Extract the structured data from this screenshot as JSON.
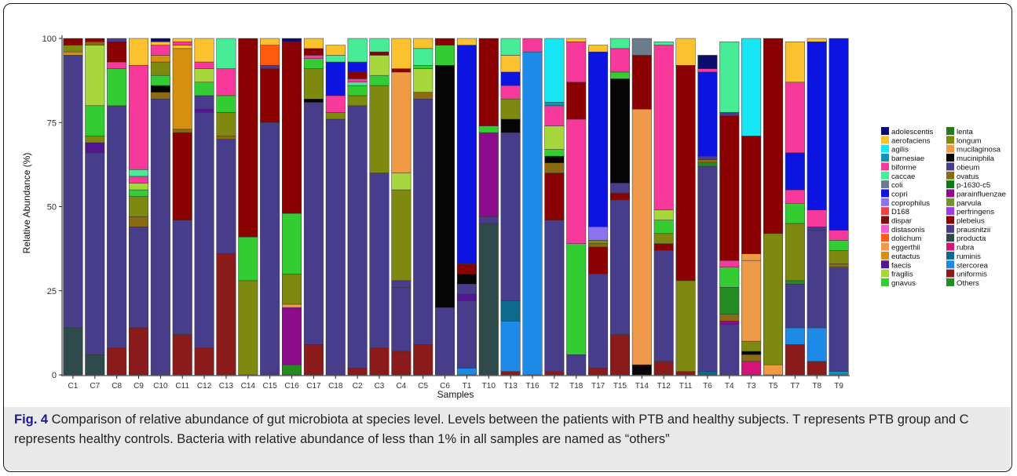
{
  "figure": {
    "caption_label": "Fig. 4",
    "caption_text": " Comparison of relative abundance of gut microbiota at species level. Levels between the patients with PTB and healthy subjects. T represents PTB group and C represents healthy controls. Bacteria with relative abundance of less than 1% in all samples are named as “others”"
  },
  "chart_data": {
    "type": "bar",
    "stacked": true,
    "xlabel": "Samples",
    "ylabel": "Relative Abundance (%)",
    "ylim": [
      0,
      100
    ],
    "yticks": [
      0,
      25,
      50,
      75,
      100
    ],
    "grid": false,
    "legend_position": "right",
    "categories": [
      "C1",
      "C7",
      "C8",
      "C9",
      "C10",
      "C11",
      "C12",
      "C13",
      "C14",
      "C15",
      "C16",
      "C17",
      "C18",
      "C2",
      "C3",
      "C4",
      "C5",
      "C6",
      "T1",
      "T10",
      "T13",
      "T16",
      "T2",
      "T18",
      "T17",
      "T15",
      "T14",
      "T12",
      "T11",
      "T6",
      "T4",
      "T3",
      "T5",
      "T7",
      "T8",
      "T9"
    ],
    "series": [
      {
        "name": "adolescentis",
        "color": "#0d0d6e"
      },
      {
        "name": "aerofaciens",
        "color": "#fcc12e"
      },
      {
        "name": "agilis",
        "color": "#17e6f5"
      },
      {
        "name": "barnesiae",
        "color": "#1392b8"
      },
      {
        "name": "biforme",
        "color": "#f7399b"
      },
      {
        "name": "caccae",
        "color": "#46ec96"
      },
      {
        "name": "coli",
        "color": "#6b7c8d"
      },
      {
        "name": "copri",
        "color": "#0b14e0"
      },
      {
        "name": "coprophilus",
        "color": "#8c72f0"
      },
      {
        "name": "D168",
        "color": "#f0414b"
      },
      {
        "name": "dispar",
        "color": "#7a1010"
      },
      {
        "name": "distasonis",
        "color": "#f25ad0"
      },
      {
        "name": "dolichum",
        "color": "#ff5a0f"
      },
      {
        "name": "eggerthii",
        "color": "#ee9a4a"
      },
      {
        "name": "eutactus",
        "color": "#d6900f"
      },
      {
        "name": "faecis",
        "color": "#541590"
      },
      {
        "name": "fragilis",
        "color": "#a6d83e"
      },
      {
        "name": "gnavus",
        "color": "#33cc33"
      },
      {
        "name": "lenta",
        "color": "#237a23"
      },
      {
        "name": "longum",
        "color": "#7e8a0f"
      },
      {
        "name": "mucilaginosa",
        "color": "#f19a44"
      },
      {
        "name": "muciniphila",
        "color": "#050505"
      },
      {
        "name": "obeum",
        "color": "#4a3c8c"
      },
      {
        "name": "ovatus",
        "color": "#8a6a12"
      },
      {
        "name": "p-1630-c5",
        "color": "#0d7a12"
      },
      {
        "name": "parainfluenzae",
        "color": "#8c0c8c"
      },
      {
        "name": "parvula",
        "color": "#72922b"
      },
      {
        "name": "perfringens",
        "color": "#9d39e6"
      },
      {
        "name": "plebeius",
        "color": "#8b0000"
      },
      {
        "name": "prausnitzii",
        "color": "#483d8b"
      },
      {
        "name": "producta",
        "color": "#2e4a4a"
      },
      {
        "name": "rubra",
        "color": "#d4147a"
      },
      {
        "name": "ruminis",
        "color": "#0e6a8c"
      },
      {
        "name": "stercorea",
        "color": "#1e8ae8"
      },
      {
        "name": "uniformis",
        "color": "#8b1a1a"
      },
      {
        "name": "Others",
        "color": "#228b22"
      }
    ],
    "stacks": [
      [
        [
          "producta",
          14
        ],
        [
          "prausnitzii",
          81
        ],
        [
          "eutactus",
          1
        ],
        [
          "longum",
          2
        ],
        [
          "plebeius",
          2
        ]
      ],
      [
        [
          "producta",
          6
        ],
        [
          "prausnitzii",
          60
        ],
        [
          "faecis",
          3
        ],
        [
          "longum",
          2
        ],
        [
          "gnavus",
          9
        ],
        [
          "fragilis",
          18
        ],
        [
          "ovatus",
          1
        ],
        [
          "plebeius",
          1
        ]
      ],
      [
        [
          "uniformis",
          8
        ],
        [
          "prausnitzii",
          72
        ],
        [
          "gnavus",
          11
        ],
        [
          "biforme",
          2
        ],
        [
          "plebeius",
          6
        ],
        [
          "obeum",
          1
        ]
      ],
      [
        [
          "uniformis",
          14
        ],
        [
          "prausnitzii",
          30
        ],
        [
          "ovatus",
          3
        ],
        [
          "longum",
          6
        ],
        [
          "gnavus",
          2
        ],
        [
          "fragilis",
          2
        ],
        [
          "biforme",
          2
        ],
        [
          "caccae",
          2
        ],
        [
          "biforme",
          31
        ],
        [
          "aerofaciens",
          8
        ]
      ],
      [
        [
          "prausnitzii",
          82
        ],
        [
          "ovatus",
          2
        ],
        [
          "muciniphila",
          2
        ],
        [
          "gnavus",
          3
        ],
        [
          "longum",
          4
        ],
        [
          "eutactus",
          2
        ],
        [
          "biforme",
          3
        ],
        [
          "aerofaciens",
          1
        ],
        [
          "adolescentis",
          1
        ]
      ],
      [
        [
          "uniformis",
          12
        ],
        [
          "prausnitzii",
          34
        ],
        [
          "plebeius",
          26
        ],
        [
          "ovatus",
          1
        ],
        [
          "eutactus",
          24
        ],
        [
          "aerofaciens",
          1
        ],
        [
          "biforme",
          1
        ],
        [
          "aerofaciens",
          1
        ]
      ],
      [
        [
          "uniformis",
          8
        ],
        [
          "prausnitzii",
          70
        ],
        [
          "faecis",
          1
        ],
        [
          "obeum",
          4
        ],
        [
          "gnavus",
          4
        ],
        [
          "fragilis",
          4
        ],
        [
          "biforme",
          2
        ],
        [
          "aerofaciens",
          7
        ]
      ],
      [
        [
          "uniformis",
          36
        ],
        [
          "prausnitzii",
          34
        ],
        [
          "ovatus",
          1
        ],
        [
          "longum",
          7
        ],
        [
          "gnavus",
          5
        ],
        [
          "biforme",
          8
        ],
        [
          "caccae",
          9
        ]
      ],
      [
        [
          "longum",
          28
        ],
        [
          "gnavus",
          13
        ],
        [
          "plebeius",
          59
        ]
      ],
      [
        [
          "prausnitzii",
          75
        ],
        [
          "plebeius",
          16
        ],
        [
          "obeum",
          1
        ],
        [
          "dolichum",
          6
        ],
        [
          "aerofaciens",
          2
        ]
      ],
      [
        [
          "Others",
          3
        ],
        [
          "parainfluenzae",
          17
        ],
        [
          "mucilaginosa",
          1
        ],
        [
          "longum",
          9
        ],
        [
          "gnavus",
          18
        ],
        [
          "plebeius",
          51
        ],
        [
          "adolescentis",
          1
        ]
      ],
      [
        [
          "uniformis",
          9
        ],
        [
          "prausnitzii",
          72
        ],
        [
          "muciniphila",
          1
        ],
        [
          "longum",
          9
        ],
        [
          "gnavus",
          3
        ],
        [
          "biforme",
          1
        ],
        [
          "plebeius",
          2
        ],
        [
          "aerofaciens",
          3
        ]
      ],
      [
        [
          "prausnitzii",
          76
        ],
        [
          "longum",
          2
        ],
        [
          "biforme",
          5
        ],
        [
          "copri",
          10
        ],
        [
          "caccae",
          2
        ],
        [
          "aerofaciens",
          3
        ]
      ],
      [
        [
          "uniformis",
          2
        ],
        [
          "prausnitzii",
          78
        ],
        [
          "longum",
          3
        ],
        [
          "gnavus",
          3
        ],
        [
          "caccae",
          1
        ],
        [
          "biforme",
          1
        ],
        [
          "plebeius",
          2
        ],
        [
          "copri",
          3
        ],
        [
          "caccae",
          7
        ]
      ],
      [
        [
          "uniformis",
          8
        ],
        [
          "prausnitzii",
          52
        ],
        [
          "longum",
          26
        ],
        [
          "gnavus",
          3
        ],
        [
          "fragilis",
          6
        ],
        [
          "plebeius",
          1
        ],
        [
          "caccae",
          4
        ]
      ],
      [
        [
          "uniformis",
          7
        ],
        [
          "prausnitzii",
          19
        ],
        [
          "obeum",
          2
        ],
        [
          "longum",
          27
        ],
        [
          "fragilis",
          5
        ],
        [
          "mucilaginosa",
          30
        ],
        [
          "plebeius",
          1
        ],
        [
          "aerofaciens",
          9
        ]
      ],
      [
        [
          "uniformis",
          9
        ],
        [
          "prausnitzii",
          73
        ],
        [
          "ovatus",
          2
        ],
        [
          "fragilis",
          7
        ],
        [
          "gnavus",
          1
        ],
        [
          "caccae",
          5
        ],
        [
          "aerofaciens",
          3
        ]
      ],
      [
        [
          "prausnitzii",
          20
        ],
        [
          "muciniphila",
          72
        ],
        [
          "gnavus",
          6
        ],
        [
          "plebeius",
          2
        ]
      ],
      [
        [
          "stercorea",
          2
        ],
        [
          "prausnitzii",
          20
        ],
        [
          "faecis",
          2
        ],
        [
          "obeum",
          3
        ],
        [
          "muciniphila",
          3
        ],
        [
          "plebeius",
          3
        ],
        [
          "copri",
          65
        ],
        [
          "aerofaciens",
          2
        ]
      ],
      [
        [
          "producta",
          45
        ],
        [
          "obeum",
          2
        ],
        [
          "parainfluenzae",
          25
        ],
        [
          "gnavus",
          2
        ],
        [
          "plebeius",
          26
        ]
      ],
      [
        [
          "uniformis",
          1
        ],
        [
          "stercorea",
          15
        ],
        [
          "ruminis",
          6
        ],
        [
          "prausnitzii",
          50
        ],
        [
          "muciniphila",
          4
        ],
        [
          "longum",
          6
        ],
        [
          "biforme",
          4
        ],
        [
          "copri",
          4
        ],
        [
          "aerofaciens",
          5
        ],
        [
          "caccae",
          5
        ]
      ],
      [
        [
          "stercorea",
          96
        ],
        [
          "biforme",
          4
        ]
      ],
      [
        [
          "uniformis",
          1
        ],
        [
          "prausnitzii",
          45
        ],
        [
          "plebeius",
          14
        ],
        [
          "ovatus",
          3
        ],
        [
          "muciniphila",
          2
        ],
        [
          "gnavus",
          2
        ],
        [
          "fragilis",
          7
        ],
        [
          "biforme",
          6
        ],
        [
          "barnesiae",
          1
        ],
        [
          "agilis",
          19
        ]
      ],
      [
        [
          "prausnitzii",
          6
        ],
        [
          "gnavus",
          33
        ],
        [
          "biforme",
          37
        ],
        [
          "plebeius",
          11
        ],
        [
          "biforme",
          12
        ],
        [
          "aerofaciens",
          1
        ]
      ],
      [
        [
          "uniformis",
          2
        ],
        [
          "prausnitzii",
          28
        ],
        [
          "plebeius",
          8
        ],
        [
          "ovatus",
          1
        ],
        [
          "longum",
          1
        ],
        [
          "coprophilus",
          4
        ],
        [
          "copri",
          52
        ],
        [
          "aerofaciens",
          2
        ]
      ],
      [
        [
          "uniformis",
          12
        ],
        [
          "prausnitzii",
          40
        ],
        [
          "plebeius",
          2
        ],
        [
          "obeum",
          3
        ],
        [
          "muciniphila",
          31
        ],
        [
          "gnavus",
          2
        ],
        [
          "biforme",
          7
        ],
        [
          "caccae",
          3
        ]
      ],
      [
        [
          "muciniphila",
          3
        ],
        [
          "eggerthii",
          76
        ],
        [
          "plebeius",
          16
        ],
        [
          "coli",
          5
        ]
      ],
      [
        [
          "uniformis",
          4
        ],
        [
          "prausnitzii",
          33
        ],
        [
          "plebeius",
          2
        ],
        [
          "longum",
          3
        ],
        [
          "gnavus",
          4
        ],
        [
          "fragilis",
          3
        ],
        [
          "biforme",
          49
        ],
        [
          "caccae",
          1
        ]
      ],
      [
        [
          "uniformis",
          1
        ],
        [
          "longum",
          27
        ],
        [
          "plebeius",
          64
        ],
        [
          "aerofaciens",
          8
        ]
      ],
      [
        [
          "ruminis",
          1
        ],
        [
          "prausnitzii",
          61
        ],
        [
          "Others",
          1
        ],
        [
          "ovatus",
          1
        ],
        [
          "obeum",
          1
        ],
        [
          "copri",
          25
        ],
        [
          "biforme",
          1
        ],
        [
          "adolescentis",
          4
        ]
      ],
      [
        [
          "prausnitzii",
          15
        ],
        [
          "parainfluenzae",
          1
        ],
        [
          "ovatus",
          2
        ],
        [
          "Others",
          8
        ],
        [
          "gnavus",
          6
        ],
        [
          "biforme",
          2
        ],
        [
          "plebeius",
          43
        ],
        [
          "obeum",
          1
        ],
        [
          "caccae",
          21
        ]
      ],
      [
        [
          "rubra",
          4
        ],
        [
          "ovatus",
          2
        ],
        [
          "muciniphila",
          1
        ],
        [
          "longum",
          3
        ],
        [
          "eggerthii",
          24
        ],
        [
          "mucilaginosa",
          2
        ],
        [
          "plebeius",
          35
        ],
        [
          "agilis",
          29
        ]
      ],
      [
        [
          "mucilaginosa",
          3
        ],
        [
          "longum",
          39
        ],
        [
          "plebeius",
          58
        ]
      ],
      [
        [
          "uniformis",
          9
        ],
        [
          "stercorea",
          5
        ],
        [
          "prausnitzii",
          13
        ],
        [
          "Others",
          1
        ],
        [
          "longum",
          17
        ],
        [
          "gnavus",
          6
        ],
        [
          "biforme",
          4
        ],
        [
          "copri",
          11
        ],
        [
          "biforme",
          21
        ],
        [
          "aerofaciens",
          12
        ]
      ],
      [
        [
          "uniformis",
          4
        ],
        [
          "stercorea",
          10
        ],
        [
          "prausnitzii",
          29
        ],
        [
          "obeum",
          1
        ],
        [
          "biforme",
          5
        ],
        [
          "copri",
          50
        ],
        [
          "aerofaciens",
          1
        ]
      ],
      [
        [
          "barnesiae",
          1
        ],
        [
          "prausnitzii",
          31
        ],
        [
          "ovatus",
          1
        ],
        [
          "longum",
          4
        ],
        [
          "gnavus",
          3
        ],
        [
          "biforme",
          3
        ],
        [
          "copri",
          57
        ]
      ]
    ]
  }
}
